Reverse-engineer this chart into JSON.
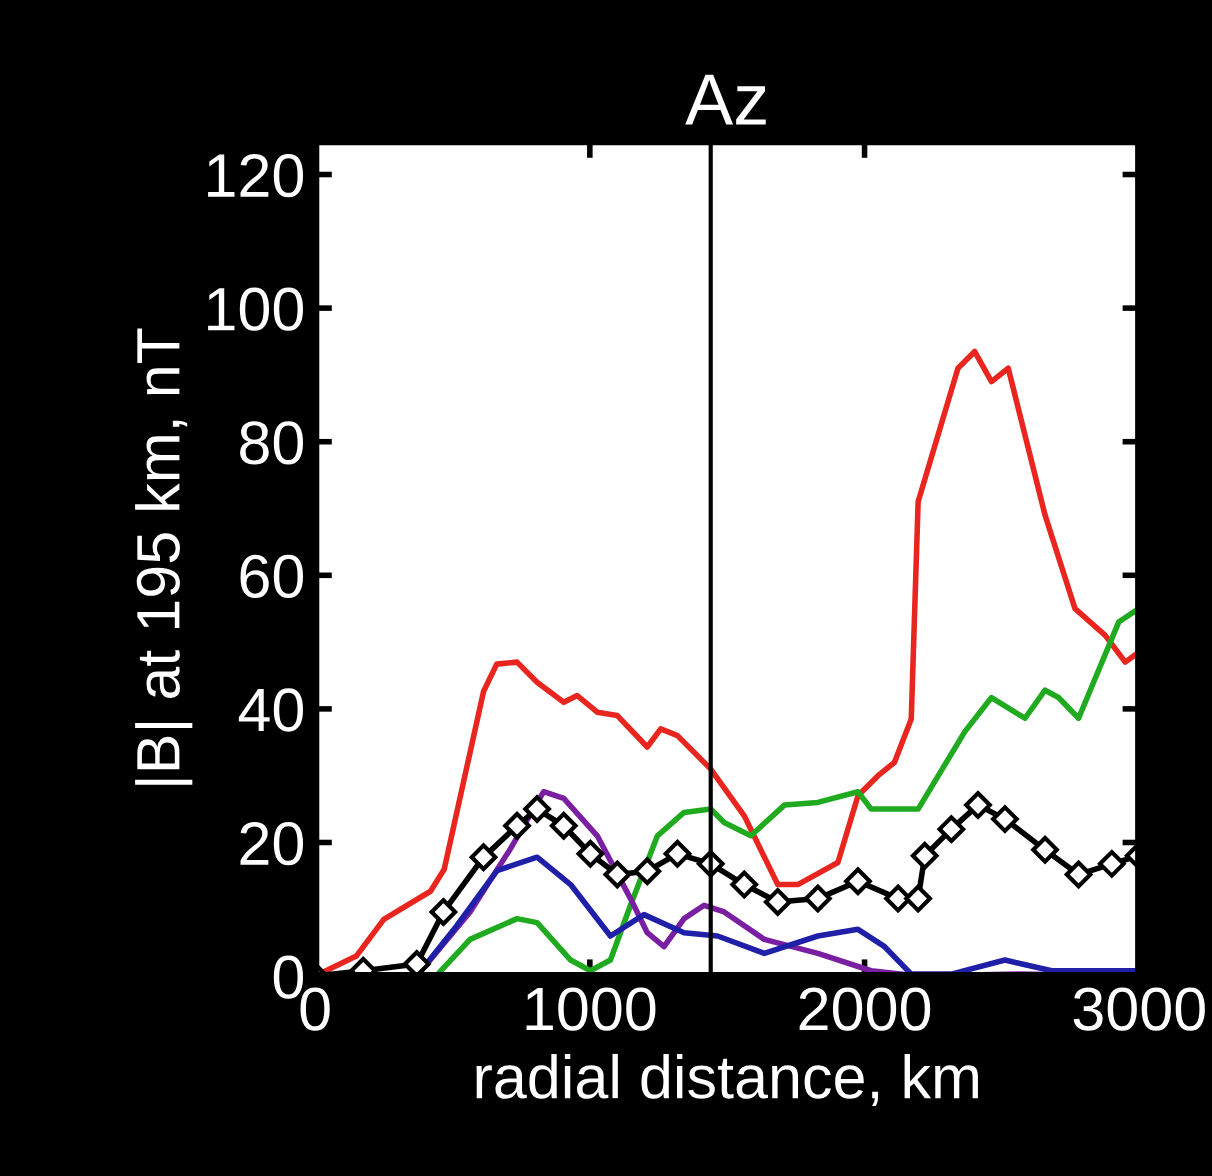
{
  "chart_data": {
    "type": "line",
    "title": "Az",
    "xlabel": "radial distance, km",
    "ylabel": "|B| at 195 km, nT",
    "xlim": [
      0,
      3000
    ],
    "ylim": [
      0,
      125
    ],
    "xticks": [
      0,
      1000,
      2000,
      3000
    ],
    "yticks": [
      0,
      20,
      40,
      60,
      80,
      100,
      120
    ],
    "grid": false,
    "legend": false,
    "line_style": "solid",
    "ref_lines": [
      {
        "axis": "x",
        "value": 1440,
        "color": "#000000"
      }
    ],
    "series": [
      {
        "color": "#e8251f",
        "marker": "none",
        "x": [
          0,
          150,
          250,
          420,
          470,
          613,
          661,
          735,
          808,
          905,
          954,
          1027,
          1100,
          1209,
          1258,
          1319,
          1440,
          1562,
          1684,
          1757,
          1903,
          1976,
          2049,
          2109,
          2170,
          2195,
          2340,
          2401,
          2462,
          2523,
          2657,
          2766,
          2876,
          2949,
          2998
        ],
        "values": [
          0,
          3,
          8.5,
          12.7,
          16,
          42.6,
          46.7,
          47,
          44,
          41,
          42,
          39.5,
          39,
          34.3,
          37,
          36,
          31,
          24,
          13.7,
          13.7,
          17,
          27,
          30,
          32,
          38.5,
          71,
          91,
          93.5,
          89,
          91,
          69,
          55,
          51,
          47,
          48.5
        ]
      },
      {
        "color": "#1faa1f",
        "marker": "none",
        "x": [
          0,
          440,
          564,
          735,
          808,
          930,
          1002,
          1075,
          1148,
          1246,
          1343,
          1440,
          1489,
          1586,
          1708,
          1830,
          1976,
          2024,
          2195,
          2365,
          2462,
          2584,
          2657,
          2706,
          2779,
          2925,
          2998
        ],
        "values": [
          0,
          0,
          5.5,
          8.6,
          8,
          2.4,
          0.8,
          2.4,
          10.6,
          21,
          24.5,
          25,
          23,
          21,
          25.6,
          26,
          27.6,
          25,
          25,
          36.6,
          41.7,
          38.6,
          42.8,
          41.7,
          38.6,
          53,
          55
        ]
      },
      {
        "color": "#7b1fa2",
        "marker": "none",
        "x": [
          0,
          370,
          564,
          710,
          832,
          905,
          1027,
          1148,
          1209,
          1270,
          1343,
          1416,
          1489,
          1635,
          1830,
          2024,
          2195,
          2560,
          2998
        ],
        "values": [
          0,
          0,
          9.6,
          19,
          27.6,
          26.6,
          21,
          11.6,
          6.5,
          4.4,
          8.6,
          10.6,
          9.6,
          5.5,
          3.4,
          0.8,
          0,
          0.3,
          0
        ]
      },
      {
        "color": "#1f1fa8",
        "marker": "none",
        "x": [
          0,
          370,
          515,
          662,
          808,
          930,
          1075,
          1197,
          1343,
          1465,
          1635,
          1830,
          1976,
          2073,
          2170,
          2316,
          2511,
          2681,
          2998
        ],
        "values": [
          0,
          0,
          7.5,
          15.8,
          17.8,
          13.7,
          6,
          9.2,
          6.5,
          6,
          3.4,
          6,
          7,
          4.4,
          0.3,
          0.3,
          2.4,
          0.8,
          0.8
        ]
      },
      {
        "color": "#000000",
        "marker": "diamond",
        "x": [
          0,
          175,
          370,
          467,
          613,
          735,
          808,
          905,
          1002,
          1100,
          1209,
          1319,
          1440,
          1562,
          1684,
          1830,
          1976,
          2122,
          2195,
          2219,
          2316,
          2413,
          2511,
          2657,
          2779,
          2900,
          2998
        ],
        "values": [
          0,
          0.8,
          1.8,
          9.6,
          17.8,
          22.5,
          25,
          22.5,
          18.3,
          15.2,
          15.7,
          18.3,
          16.8,
          13.7,
          11.1,
          11.6,
          14.2,
          11.6,
          11.6,
          18,
          22,
          25.6,
          23.5,
          18.9,
          15.2,
          16.8,
          18
        ]
      }
    ]
  }
}
